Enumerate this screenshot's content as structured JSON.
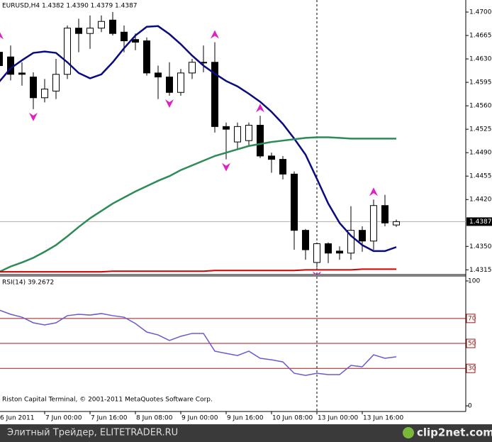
{
  "chart_data": [
    {
      "type": "candlestick",
      "title": "EURUSD,H4  1.4382 1.4390 1.4379 1.4387",
      "categories": [
        "6 Jun 2011",
        null,
        null,
        null,
        "7 Jun 00:00",
        null,
        null,
        null,
        "7 Jun 16:00",
        null,
        null,
        null,
        "8 Jun 08:00",
        null,
        null,
        null,
        "9 Jun 00:00",
        null,
        null,
        null,
        "9 Jun 16:00",
        null,
        null,
        null,
        "10 Jun 08:00",
        null,
        null,
        null,
        "13 Jun 00:00",
        null,
        null,
        null,
        "13 Jun 16:00",
        null,
        null,
        null
      ],
      "open": [
        1.464,
        1.4633,
        1.4609,
        1.4603,
        1.4572,
        1.4582,
        1.4607,
        1.4676,
        1.4668,
        1.4676,
        1.4688,
        1.467,
        1.4659,
        1.4657,
        1.4609,
        1.4603,
        1.458,
        1.4609,
        1.4625,
        1.4625,
        1.4529,
        1.4506,
        1.4508,
        1.4531,
        1.4485,
        1.448,
        1.4458,
        1.4374,
        1.4326,
        1.4354,
        1.4343,
        1.434,
        1.4374,
        1.4358,
        1.4411,
        1.4382
      ],
      "high": [
        1.4654,
        1.465,
        1.4625,
        1.461,
        1.46,
        1.463,
        1.468,
        1.469,
        1.4695,
        1.4695,
        1.47,
        1.468,
        1.4668,
        1.4662,
        1.462,
        1.4625,
        1.4615,
        1.463,
        1.465,
        1.4655,
        1.4535,
        1.4535,
        1.4535,
        1.4545,
        1.449,
        1.4485,
        1.4462,
        1.4376,
        1.4356,
        1.4356,
        1.435,
        1.441,
        1.438,
        1.442,
        1.4427,
        1.439
      ],
      "low": [
        1.4615,
        1.4598,
        1.459,
        1.4555,
        1.4565,
        1.457,
        1.46,
        1.464,
        1.4645,
        1.467,
        1.4665,
        1.464,
        1.4643,
        1.4605,
        1.457,
        1.4575,
        1.4575,
        1.46,
        1.461,
        1.452,
        1.448,
        1.4495,
        1.45,
        1.4482,
        1.446,
        1.445,
        1.4345,
        1.433,
        1.4318,
        1.4325,
        1.433,
        1.433,
        1.4342,
        1.4345,
        1.438,
        1.4379
      ],
      "close": [
        1.462,
        1.4607,
        1.4607,
        1.4572,
        1.4585,
        1.4607,
        1.4676,
        1.4668,
        1.4676,
        1.4686,
        1.4668,
        1.4657,
        1.4655,
        1.4609,
        1.4603,
        1.458,
        1.4609,
        1.4625,
        1.4624,
        1.4529,
        1.4525,
        1.4529,
        1.4531,
        1.4485,
        1.448,
        1.4458,
        1.4374,
        1.4345,
        1.4354,
        1.434,
        1.434,
        1.4374,
        1.4358,
        1.4411,
        1.4385,
        1.4387
      ],
      "up_color": "#ffffff",
      "down_color": "#000000",
      "overlays": [
        {
          "color": "#0b0b80",
          "values": [
            1.4596,
            1.4616,
            1.4628,
            1.4639,
            1.4641,
            1.4639,
            1.4625,
            1.4609,
            1.4601,
            1.4607,
            1.4625,
            1.4646,
            1.4665,
            1.4678,
            1.4679,
            1.4667,
            1.4652,
            1.4635,
            1.462,
            1.4608,
            1.4597,
            1.4589,
            1.4578,
            1.4566,
            1.4551,
            1.4533,
            1.4511,
            1.4487,
            1.4451,
            1.4414,
            1.4385,
            1.4366,
            1.4352,
            1.4343,
            1.4343,
            1.4349
          ]
        },
        {
          "color": "#2e8b57",
          "values": [
            1.4312,
            1.432,
            1.4326,
            1.4333,
            1.4342,
            1.4352,
            1.4365,
            1.4379,
            1.4392,
            1.4403,
            1.4414,
            1.4423,
            1.4432,
            1.444,
            1.4448,
            1.4455,
            1.4464,
            1.4471,
            1.4478,
            1.4485,
            1.449,
            1.4495,
            1.45,
            1.4503,
            1.4506,
            1.4508,
            1.451,
            1.4512,
            1.4513,
            1.4513,
            1.4512,
            1.4511,
            1.4511,
            1.4511,
            1.4511,
            1.4511
          ]
        },
        {
          "color": "#d00000",
          "values": [
            1.4312,
            1.4312,
            1.4312,
            1.4312,
            1.4312,
            1.4312,
            1.4312,
            1.4312,
            1.4312,
            1.4312,
            1.4313,
            1.4313,
            1.4313,
            1.4313,
            1.4313,
            1.4313,
            1.4313,
            1.4313,
            1.4313,
            1.4314,
            1.4314,
            1.4314,
            1.4314,
            1.4314,
            1.4314,
            1.4314,
            1.4314,
            1.4315,
            1.4315,
            1.4315,
            1.4315,
            1.4315,
            1.4316,
            1.4316,
            1.4316,
            1.4316
          ]
        }
      ],
      "fractals_up": [
        0,
        19,
        23,
        33
      ],
      "fractals_down": [
        3,
        15,
        20,
        28
      ],
      "fractal_color": "#e020c0",
      "last_price": {
        "value": 1.4387,
        "label": "1.4387"
      },
      "ylim": [
        1.4309,
        1.4718
      ],
      "yticks": [
        {
          "value": 1.47,
          "label": "1.4700"
        },
        {
          "value": 1.4665,
          "label": "1.4665"
        },
        {
          "value": 1.463,
          "label": "1.4630"
        },
        {
          "value": 1.4595,
          "label": "1.4595"
        },
        {
          "value": 1.456,
          "label": "1.4560"
        },
        {
          "value": 1.4525,
          "label": "1.4525"
        },
        {
          "value": 1.449,
          "label": "1.4490"
        },
        {
          "value": 1.4455,
          "label": "1.4455"
        },
        {
          "value": 1.442,
          "label": "1.4420"
        },
        {
          "value": 1.435,
          "label": "1.4350"
        },
        {
          "value": 1.4315,
          "label": "1.4315"
        }
      ]
    },
    {
      "type": "line",
      "title": "RSI(14) 39.2672",
      "values": [
        76.7,
        73.3,
        71.0,
        66.5,
        64.8,
        66.5,
        72.2,
        73.3,
        72.7,
        73.9,
        72.2,
        71.0,
        65.9,
        59.1,
        56.8,
        52.3,
        55.7,
        58.0,
        58.0,
        43.8,
        42.0,
        40.3,
        43.8,
        38.1,
        36.9,
        35.2,
        26.1,
        24.4,
        26.1,
        25.0,
        25.0,
        32.4,
        31.3,
        40.9,
        38.1,
        39.2672
      ],
      "color": "#6a5acd",
      "level_color": "#a01818",
      "levels": [
        70,
        50,
        30
      ],
      "ylim": [
        -4.5,
        103.4
      ],
      "yticks": [
        100,
        70,
        50,
        30,
        0
      ]
    }
  ],
  "watermark": "Riston Capital Terminal, © 2001-2011 MetaQuotes Software Corp.",
  "footer": {
    "left": "Элитный Трейдер, ELITETRADER.RU",
    "logo": "clip2net.com"
  }
}
